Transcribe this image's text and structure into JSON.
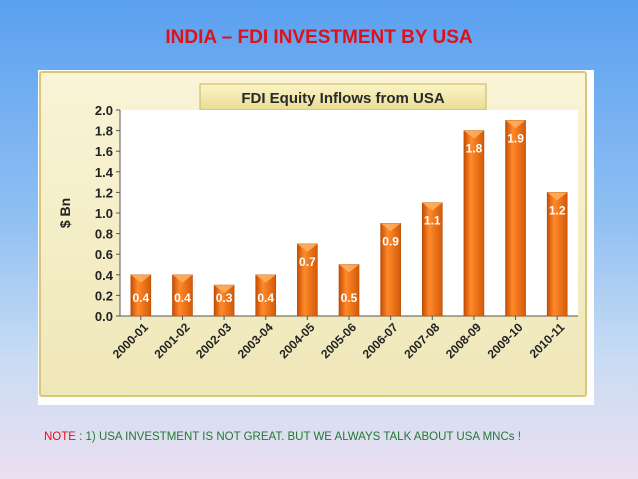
{
  "slide": {
    "title": "INDIA – FDI INVESTMENT BY USA",
    "note_label": "NOTE",
    "note_text": " : 1) USA INVESTMENT IS NOT GREAT.   BUT WE ALWAYS TALK ABOUT USA MNCs !"
  },
  "colors": {
    "title": "#e0101a",
    "note": "#1f7a30",
    "bar": "#ee6a10",
    "panel_bg": "#f7f2cf"
  },
  "chart_data": {
    "type": "bar",
    "title": "FDI Equity Inflows from USA",
    "ylabel": "$ Bn",
    "xlabel": "",
    "ylim": [
      0,
      2.0
    ],
    "yticks": [
      "0.0",
      "0.2",
      "0.4",
      "0.6",
      "0.8",
      "1.0",
      "1.2",
      "1.4",
      "1.6",
      "1.8",
      "2.0"
    ],
    "categories": [
      "2000-01",
      "2001-02",
      "2002-03",
      "2003-04",
      "2004-05",
      "2005-06",
      "2006-07",
      "2007-08",
      "2008-09",
      "2009-10",
      "2010-11"
    ],
    "values": [
      0.4,
      0.4,
      0.3,
      0.4,
      0.7,
      0.5,
      0.9,
      1.1,
      1.8,
      1.9,
      1.2
    ],
    "labels": [
      "0.4",
      "0.4",
      "0.3",
      "0.4",
      "0.7",
      "0.5",
      "0.9",
      "1.1",
      "1.8",
      "1.9",
      "1.2"
    ],
    "grid": false,
    "legend": "none"
  }
}
